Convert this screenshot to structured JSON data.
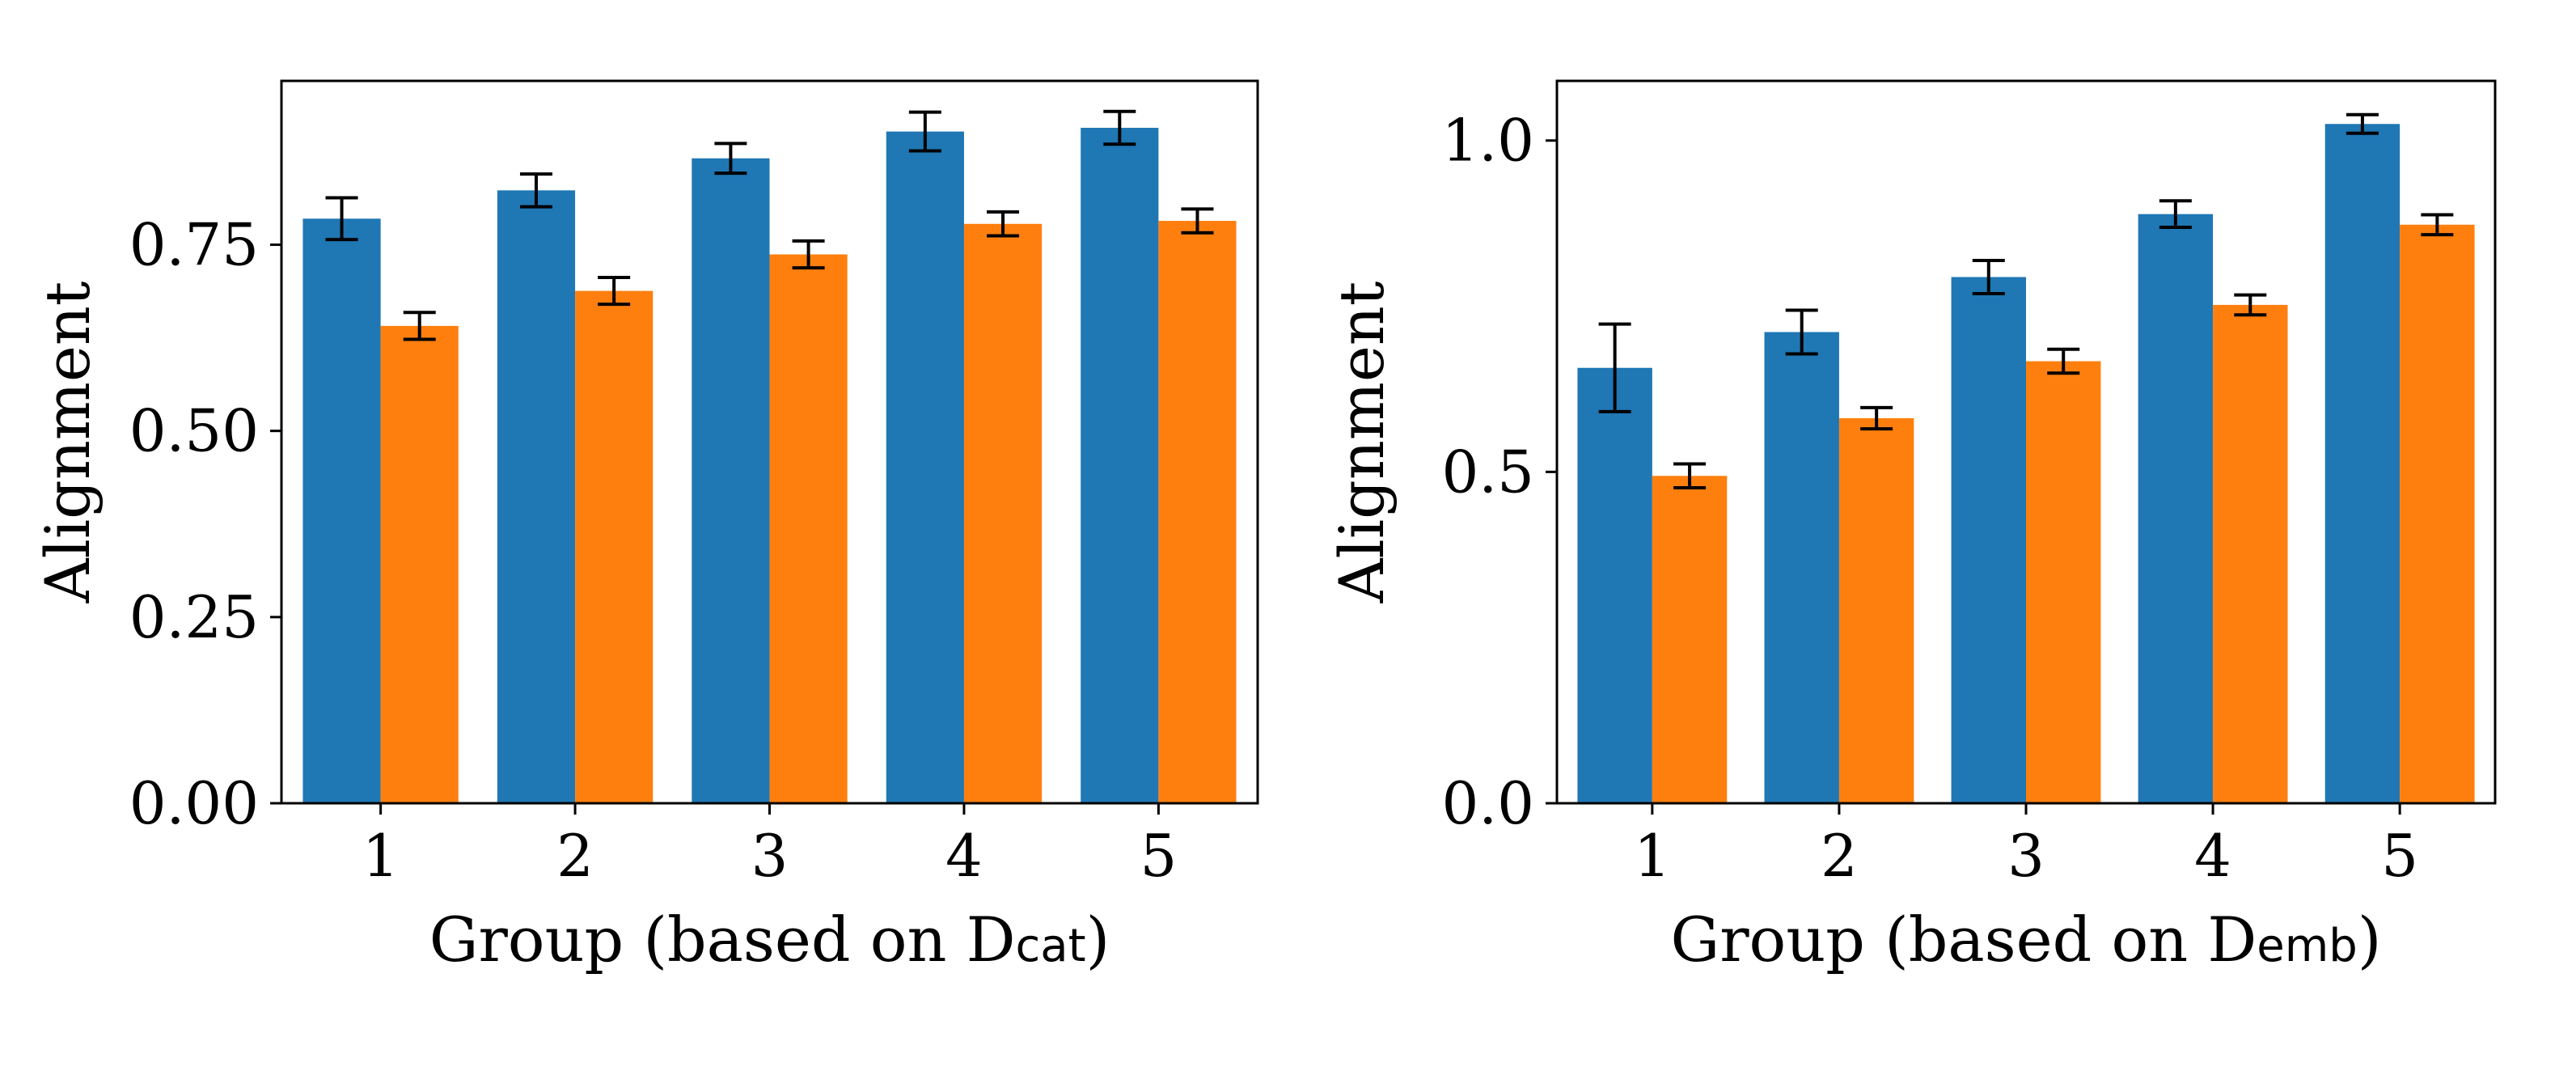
{
  "chart_data": [
    {
      "type": "bar",
      "categories": [
        "1",
        "2",
        "3",
        "4",
        "5"
      ],
      "series": [
        {
          "color": "#1f77b4",
          "values": [
            0.785,
            0.823,
            0.866,
            0.902,
            0.907
          ],
          "errors": [
            0.028,
            0.022,
            0.02,
            0.026,
            0.022
          ]
        },
        {
          "color": "#ff7f0e",
          "values": [
            0.641,
            0.688,
            0.737,
            0.778,
            0.782
          ],
          "errors": [
            0.018,
            0.018,
            0.018,
            0.016,
            0.016
          ]
        }
      ],
      "ylim": [
        0,
        0.97
      ],
      "yticks": [
        "0.00",
        "0.25",
        "0.50",
        "0.75"
      ],
      "ytick_values": [
        0,
        0.25,
        0.5,
        0.75
      ],
      "xlabel": {
        "main": "Group (based on D",
        "sub": "cat",
        "close": ")"
      },
      "ylabel": "Alignment"
    },
    {
      "type": "bar",
      "categories": [
        "1",
        "2",
        "3",
        "4",
        "5"
      ],
      "series": [
        {
          "color": "#1f77b4",
          "values": [
            0.657,
            0.711,
            0.794,
            0.889,
            1.025
          ],
          "errors": [
            0.066,
            0.033,
            0.025,
            0.02,
            0.014
          ]
        },
        {
          "color": "#ff7f0e",
          "values": [
            0.494,
            0.581,
            0.667,
            0.752,
            0.873
          ],
          "errors": [
            0.018,
            0.016,
            0.018,
            0.015,
            0.015
          ]
        }
      ],
      "ylim": [
        0,
        1.09
      ],
      "yticks": [
        "0.0",
        "0.5",
        "1.0"
      ],
      "ytick_values": [
        0,
        0.5,
        1.0
      ],
      "xlabel": {
        "main": "Group (based on D",
        "sub": "emb",
        "close": ")"
      },
      "ylabel": "Alignment"
    }
  ]
}
